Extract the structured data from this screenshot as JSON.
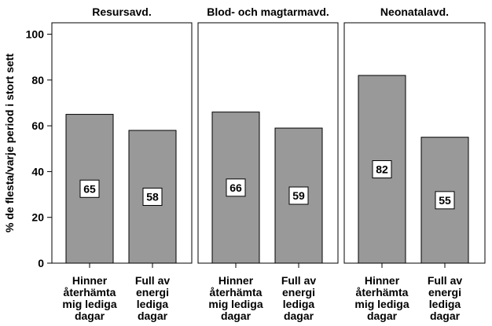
{
  "chart_data": {
    "type": "bar",
    "ylabel": "% de flesta/varje period i stort sett",
    "ylim": [
      0,
      105
    ],
    "yticks": [
      0,
      20,
      40,
      60,
      80,
      100
    ],
    "categories": [
      [
        "Hinner",
        "återhämta",
        "mig lediga",
        "dagar"
      ],
      [
        "Full av",
        "energi",
        "lediga",
        "dagar"
      ]
    ],
    "panels": [
      {
        "title": "Resursavd.",
        "values": [
          65,
          58
        ]
      },
      {
        "title": "Blod- och magtarmavd.",
        "values": [
          66,
          59
        ]
      },
      {
        "title": "Neonatalavd.",
        "values": [
          82,
          55
        ]
      }
    ],
    "bar_color": "#999999",
    "data_labels": true,
    "grid": false
  }
}
